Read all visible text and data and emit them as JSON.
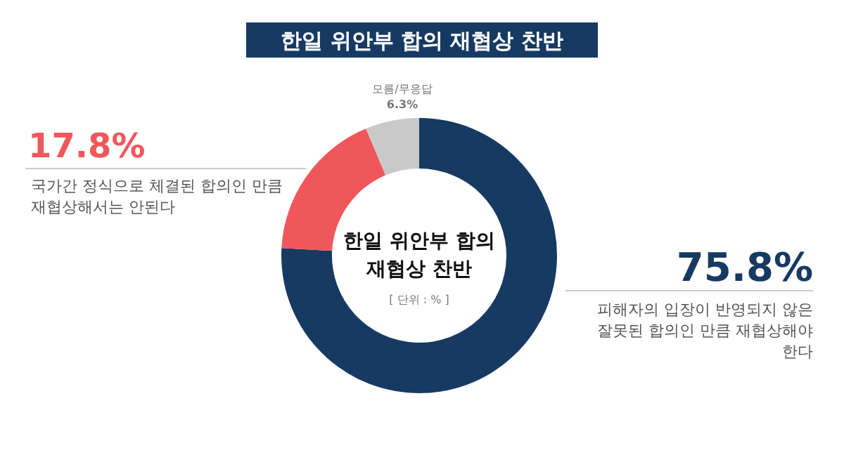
{
  "chart_data": {
    "type": "donut",
    "title": "한일 위안부 합의 재협상 찬반",
    "categories": [
      "피해자의 입장이 반영되지 않은 잘못된 합의인 만큼 재협상해야 한다",
      "국가간 정식으로 체결된 합의인 만큼 재협상해서는 안된다",
      "모름/무응답"
    ],
    "values": [
      75.8,
      17.8,
      6.3
    ],
    "colors": [
      "#173a63",
      "#f0575a",
      "#c9c9c9"
    ],
    "value_labels": [
      "75.8%",
      "17.8%",
      "6.3%"
    ],
    "annotations": [
      "한일 위안부 합의 재협상 찬반",
      "[ 단위 : % ]"
    ]
  }
}
